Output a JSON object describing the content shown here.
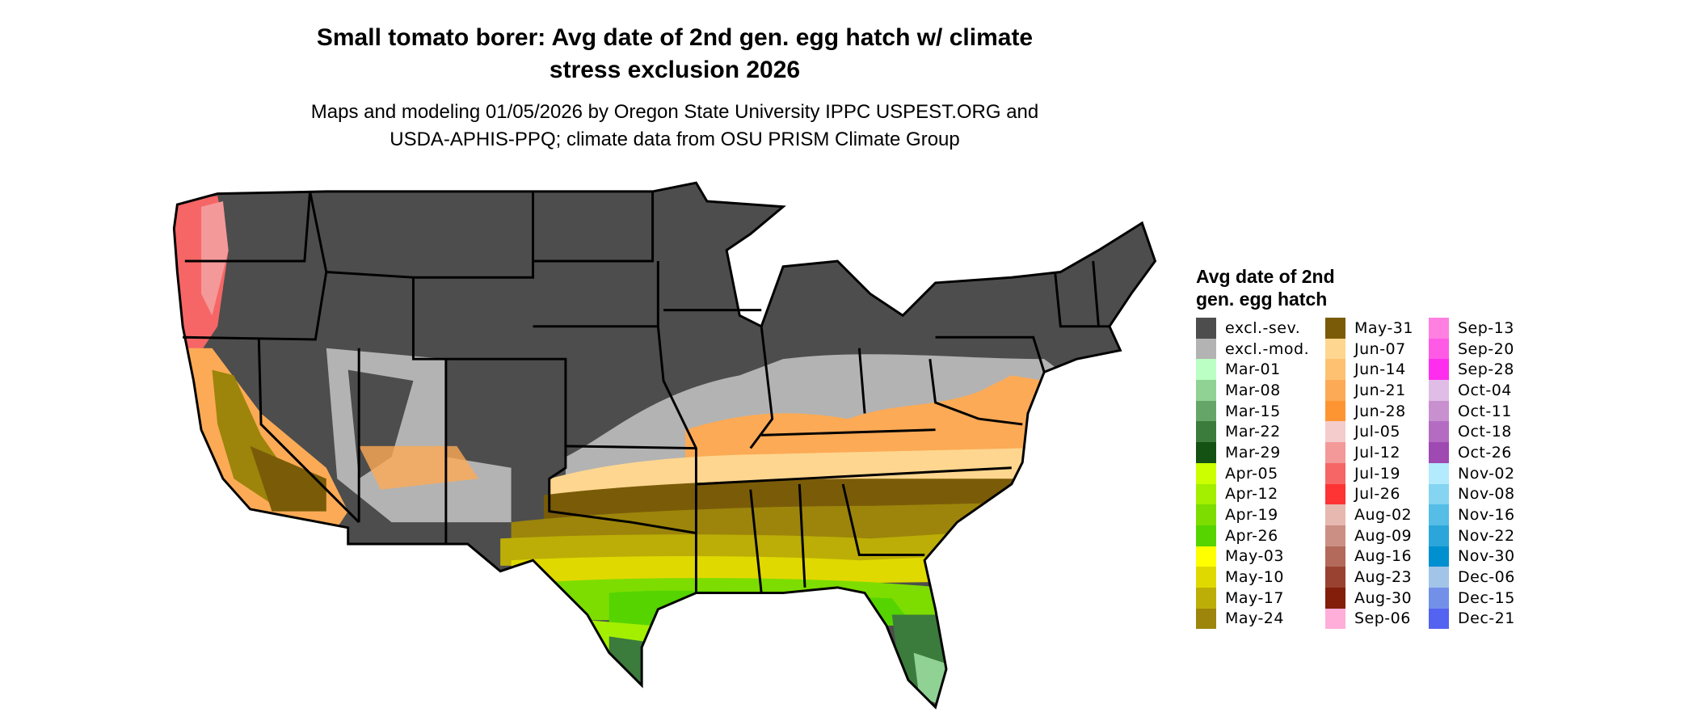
{
  "title": {
    "line1": "Small tomato borer: Avg date of 2nd gen. egg hatch w/ climate",
    "line2": "stress exclusion 2026"
  },
  "subtitle": {
    "line1": "Maps and modeling 01/05/2026 by Oregon State University IPPC USPEST.ORG and",
    "line2": "USDA-APHIS-PPQ; climate data from OSU PRISM Climate Group"
  },
  "legend": {
    "title_line1": "Avg date of 2nd",
    "title_line2": "gen. egg hatch",
    "columns": [
      [
        {
          "label": "excl.-sev.",
          "color": "#4d4d4d"
        },
        {
          "label": "excl.-mod.",
          "color": "#b3b3b3"
        },
        {
          "label": "Mar-01",
          "color": "#bbffc4"
        },
        {
          "label": "Mar-08",
          "color": "#8fd294"
        },
        {
          "label": "Mar-15",
          "color": "#65a668"
        },
        {
          "label": "Mar-22",
          "color": "#3b7b3c"
        },
        {
          "label": "Mar-29",
          "color": "#145214"
        },
        {
          "label": "Apr-05",
          "color": "#ccff00"
        },
        {
          "label": "Apr-12",
          "color": "#a4ee00"
        },
        {
          "label": "Apr-19",
          "color": "#7ddd00"
        },
        {
          "label": "Apr-26",
          "color": "#55d400"
        },
        {
          "label": "May-03",
          "color": "#ffff00"
        },
        {
          "label": "May-10",
          "color": "#e0d900"
        },
        {
          "label": "May-17",
          "color": "#bcae06"
        },
        {
          "label": "May-24",
          "color": "#9c850a"
        }
      ],
      [
        {
          "label": "May-31",
          "color": "#7a5c08"
        },
        {
          "label": "Jun-07",
          "color": "#ffd68f"
        },
        {
          "label": "Jun-14",
          "color": "#fec171"
        },
        {
          "label": "Jun-21",
          "color": "#fcaa55"
        },
        {
          "label": "Jun-28",
          "color": "#fe9533"
        },
        {
          "label": "Jul-05",
          "color": "#f4cccc"
        },
        {
          "label": "Jul-12",
          "color": "#f49999"
        },
        {
          "label": "Jul-19",
          "color": "#f66666"
        },
        {
          "label": "Jul-26",
          "color": "#fe3333"
        },
        {
          "label": "Aug-02",
          "color": "#e6b8b0"
        },
        {
          "label": "Aug-09",
          "color": "#cb8f83"
        },
        {
          "label": "Aug-16",
          "color": "#b36a5b"
        },
        {
          "label": "Aug-23",
          "color": "#9a4231"
        },
        {
          "label": "Aug-30",
          "color": "#821e0a"
        },
        {
          "label": "Sep-06",
          "color": "#ffaed9"
        }
      ],
      [
        {
          "label": "Sep-13",
          "color": "#ff80e0"
        },
        {
          "label": "Sep-20",
          "color": "#ff5ae6"
        },
        {
          "label": "Sep-28",
          "color": "#ff2eee"
        },
        {
          "label": "Oct-04",
          "color": "#e0bde6"
        },
        {
          "label": "Oct-11",
          "color": "#c990d0"
        },
        {
          "label": "Oct-18",
          "color": "#b46cc2"
        },
        {
          "label": "Oct-26",
          "color": "#9f49b2"
        },
        {
          "label": "Nov-02",
          "color": "#b3eafe"
        },
        {
          "label": "Nov-08",
          "color": "#85d4f1"
        },
        {
          "label": "Nov-16",
          "color": "#55bde6"
        },
        {
          "label": "Nov-22",
          "color": "#2ca6da"
        },
        {
          "label": "Nov-30",
          "color": "#0090d0"
        },
        {
          "label": "Dec-06",
          "color": "#a2c4e8"
        },
        {
          "label": "Dec-15",
          "color": "#7390e8"
        },
        {
          "label": "Dec-21",
          "color": "#5463f0"
        }
      ]
    ]
  }
}
